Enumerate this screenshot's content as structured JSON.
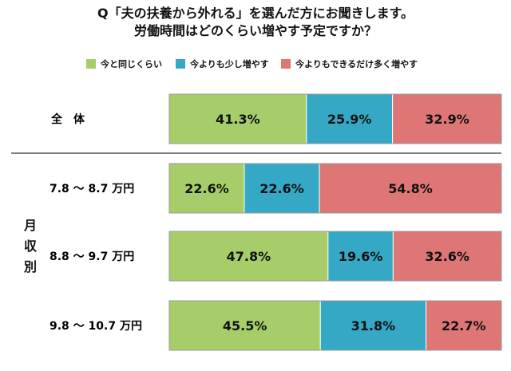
{
  "title": {
    "line1": "Q「夫の扶養から外れる」を選んだ方にお聞きします。",
    "line2": "労働時間はどのくらい増やす予定ですか？"
  },
  "legend": [
    {
      "label": "今と同じくらい",
      "color": "#a6cd6a"
    },
    {
      "label": "今よりも少し増やす",
      "color": "#35a8c5"
    },
    {
      "label": "今よりもできるだけ多く増やす",
      "color": "#de7676"
    }
  ],
  "side_label": "月収別",
  "chart_data": {
    "type": "bar",
    "orientation": "horizontal",
    "stacked": "100%",
    "categories": [
      "全　体",
      "7.8 ～ 8.7 万円",
      "8.8 ～ 9.7 万円",
      "9.8 ～ 10.7 万円"
    ],
    "series": [
      {
        "name": "今と同じくらい",
        "color": "#a6cd6a",
        "values": [
          41.3,
          22.6,
          47.8,
          45.5
        ]
      },
      {
        "name": "今よりも少し増やす",
        "color": "#35a8c5",
        "values": [
          25.9,
          22.6,
          19.6,
          31.8
        ]
      },
      {
        "name": "今よりもできるだけ多く増やす",
        "color": "#de7676",
        "values": [
          32.9,
          54.8,
          32.6,
          22.7
        ]
      }
    ],
    "value_labels": [
      [
        "41.3%",
        "25.9%",
        "32.9%"
      ],
      [
        "22.6%",
        "22.6%",
        "54.8%"
      ],
      [
        "47.8%",
        "19.6%",
        "32.6%"
      ],
      [
        "45.5%",
        "31.8%",
        "22.7%"
      ]
    ],
    "xlim": [
      0,
      100
    ],
    "legend_position": "top",
    "group_label": "月収別"
  }
}
